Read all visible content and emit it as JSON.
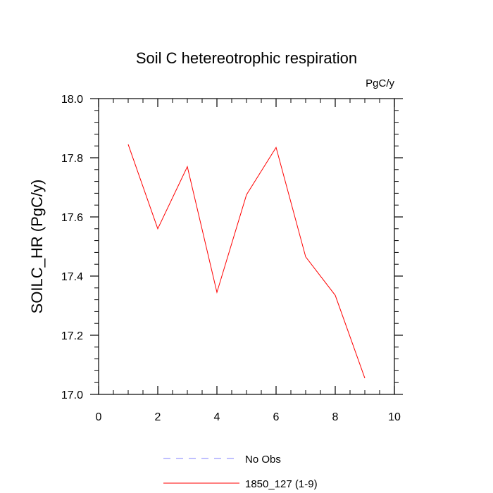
{
  "chart_data": {
    "type": "line",
    "title": "Soil C hetereotrophic respiration",
    "units": "PgC/y",
    "xlabel": "",
    "ylabel": "SOILC_HR  (PgC/y)",
    "xlim": [
      0,
      10
    ],
    "ylim": [
      17.0,
      18.0
    ],
    "x_ticks": [
      "0",
      "2",
      "4",
      "6",
      "8",
      "10"
    ],
    "y_ticks": [
      "17.0",
      "17.2",
      "17.4",
      "17.6",
      "17.8",
      "18.0"
    ],
    "series": [
      {
        "name": "1850_127 (1-9)",
        "color": "#ff0000",
        "style": "solid",
        "x": [
          1,
          2,
          3,
          4,
          5,
          6,
          7,
          8,
          9
        ],
        "values": [
          17.845,
          17.56,
          17.77,
          17.345,
          17.675,
          17.835,
          17.465,
          17.335,
          17.055
        ]
      }
    ],
    "legend": [
      {
        "label": "No Obs",
        "color": "#8080ff",
        "style": "dashed"
      },
      {
        "label": "1850_127 (1-9)",
        "color": "#ff0000",
        "style": "solid"
      }
    ],
    "legend_position": "bottom-center",
    "grid": false
  }
}
